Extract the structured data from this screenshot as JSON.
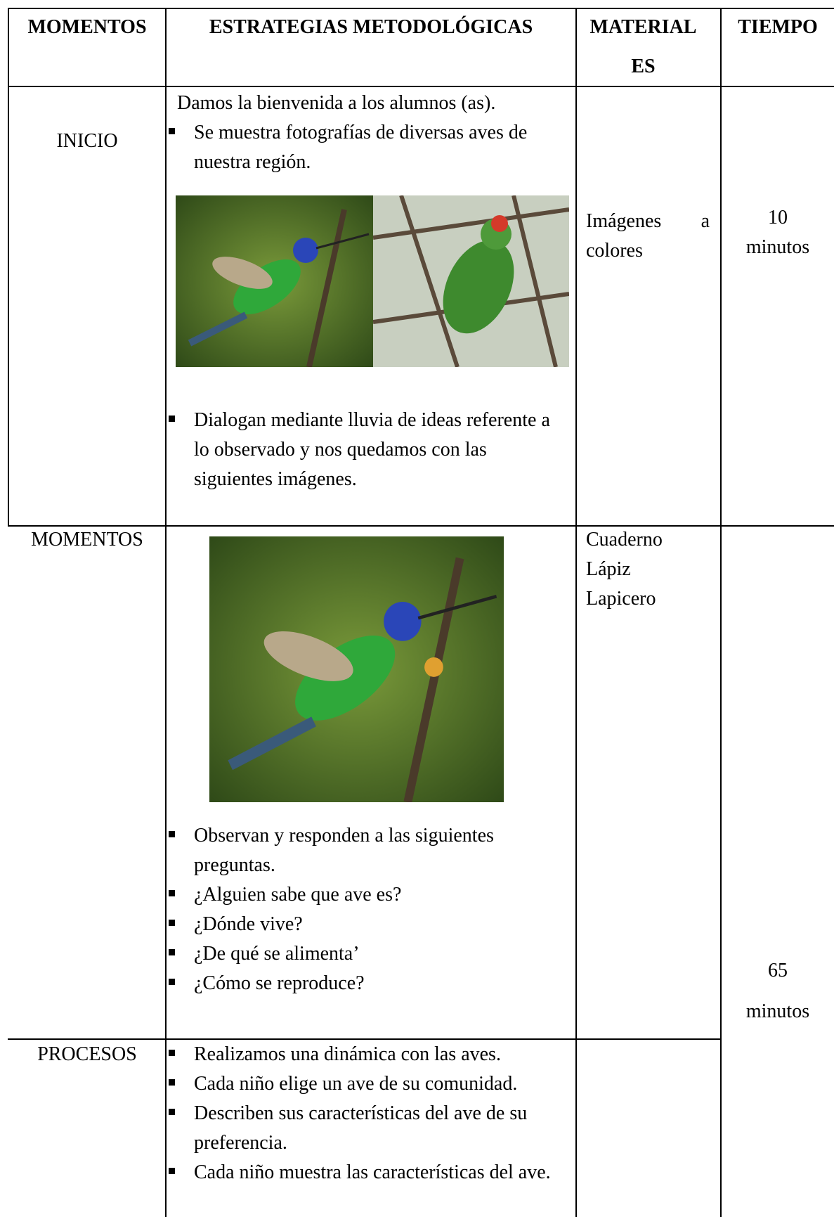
{
  "table": {
    "header": [
      "MOMENTOS",
      "ESTRATEGIAS METODOLÓGICAS",
      "MATERIALES",
      "TIEMPO"
    ],
    "rows": [
      {
        "moment": "INICIO",
        "intro": "Damos la bienvenida a los alumnos (as).",
        "bullets": [
          "Se muestra fotografías de diversas aves de nuestra región."
        ],
        "bullets_after": [
          "Dialogan mediante lluvia de ideas referente a lo observado y nos quedamos con las siguientes imágenes."
        ],
        "materials": [
          "Imágenes a colores"
        ],
        "time": [
          "10",
          "minutos"
        ]
      },
      {
        "moment": "MOMENTOS",
        "bullets": [
          "Observan y responden a las siguientes preguntas.",
          "¿Alguien sabe que ave es?",
          "¿Dónde vive?",
          "¿De qué se alimenta’",
          "¿Cómo se reproduce?"
        ],
        "materials": [
          "Cuaderno",
          "Lápiz",
          "Lapicero"
        ],
        "time": [
          "65",
          "minutos"
        ]
      },
      {
        "moment": "PROCESOS",
        "bullets": [
          "Realizamos una dinámica con las aves.",
          "Cada niño elige un ave de su comunidad.",
          "Describen sus características del ave de su preferencia.",
          "Cada niño muestra las características del ave."
        ]
      }
    ]
  }
}
